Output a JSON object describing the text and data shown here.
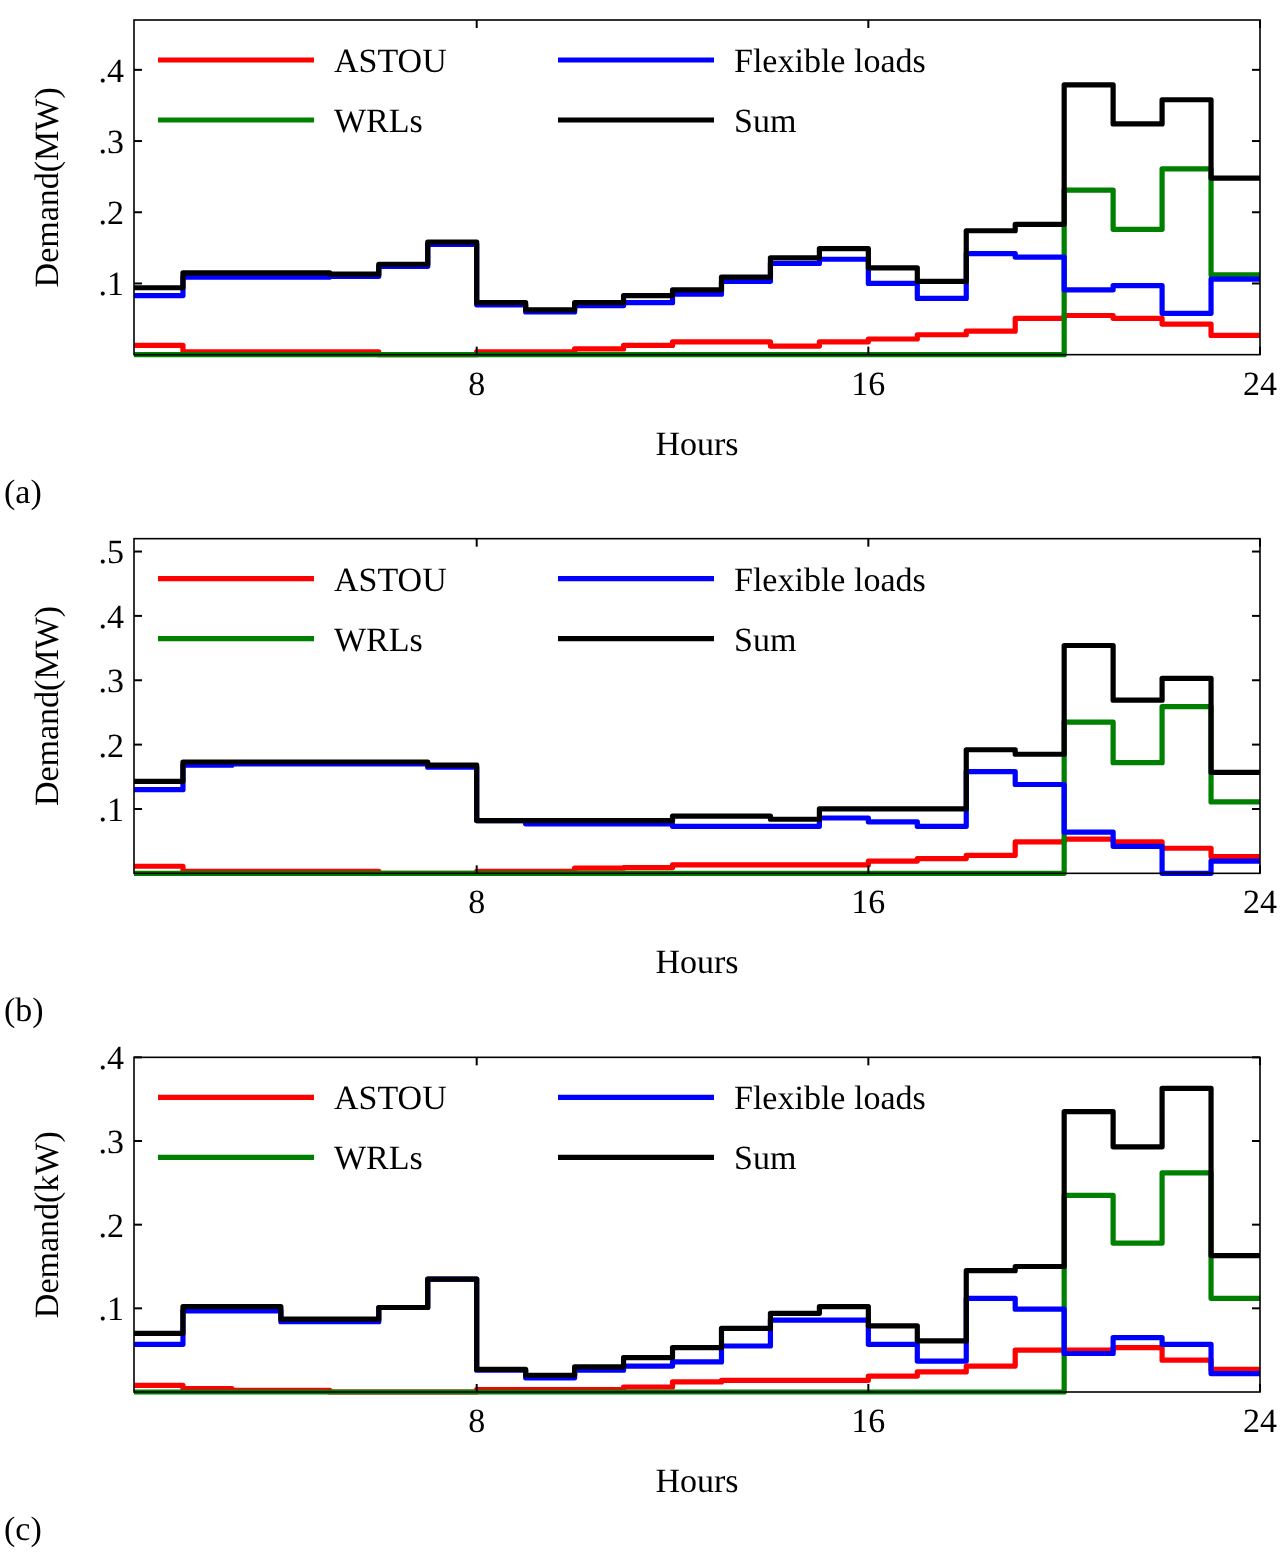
{
  "chart_data": [
    {
      "type": "step",
      "xlabel": "Hours",
      "ylabel": "Demand(MW)",
      "annotations": [
        "(a)"
      ],
      "x": [
        1,
        2,
        3,
        4,
        5,
        6,
        7,
        8,
        9,
        10,
        11,
        12,
        13,
        14,
        15,
        16,
        17,
        18,
        19,
        20,
        21,
        22,
        23,
        24
      ],
      "xlim": [
        1,
        24
      ],
      "xticks": [
        8,
        16,
        24
      ],
      "ylim": [
        0,
        0.47
      ],
      "yticks": [
        {
          "value": 0.1,
          "label": ".1"
        },
        {
          "value": 0.2,
          "label": ".2"
        },
        {
          "value": 0.3,
          "label": ".3"
        },
        {
          "value": 0.4,
          "label": ".4"
        }
      ],
      "legend": "top left",
      "series": [
        {
          "name": "ASTOU",
          "color": "#ff0000",
          "values": [
            0.013,
            0.004,
            0.004,
            0.004,
            0.004,
            0,
            0,
            0.004,
            0.004,
            0.008,
            0.013,
            0.018,
            0.018,
            0.012,
            0.018,
            0.022,
            0.028,
            0.033,
            0.051,
            0.055,
            0.051,
            0.043,
            0.027,
            0.027
          ]
        },
        {
          "name": "WRLs",
          "color": "#008000",
          "values": [
            0,
            0,
            0,
            0,
            0,
            0,
            0,
            0,
            0,
            0,
            0,
            0,
            0,
            0,
            0,
            0,
            0,
            0,
            0,
            0.231,
            0.176,
            0.261,
            0.112,
            0.112
          ]
        },
        {
          "name": "Flexible loads",
          "color": "#0000ff",
          "values": [
            0.083,
            0.109,
            0.109,
            0.109,
            0.11,
            0.124,
            0.155,
            0.07,
            0.06,
            0.069,
            0.073,
            0.085,
            0.103,
            0.128,
            0.134,
            0.1,
            0.079,
            0.142,
            0.137,
            0.091,
            0.097,
            0.058,
            0.106,
            0.106
          ]
        },
        {
          "name": "Sum",
          "color": "#000000",
          "values": [
            0.094,
            0.115,
            0.115,
            0.115,
            0.113,
            0.127,
            0.158,
            0.073,
            0.063,
            0.073,
            0.083,
            0.091,
            0.109,
            0.136,
            0.149,
            0.122,
            0.103,
            0.174,
            0.183,
            0.379,
            0.324,
            0.358,
            0.248,
            0.248
          ]
        }
      ]
    },
    {
      "type": "step",
      "xlabel": "Hours",
      "ylabel": "Demand(MW)",
      "annotations": [
        "(b)"
      ],
      "x": [
        1,
        2,
        3,
        4,
        5,
        6,
        7,
        8,
        9,
        10,
        11,
        12,
        13,
        14,
        15,
        16,
        17,
        18,
        19,
        20,
        21,
        22,
        23,
        24
      ],
      "xlim": [
        1,
        24
      ],
      "xticks": [
        8,
        16,
        24
      ],
      "ylim": [
        0,
        0.52
      ],
      "yticks": [
        {
          "value": 0.1,
          "label": ".1"
        },
        {
          "value": 0.2,
          "label": ".2"
        },
        {
          "value": 0.3,
          "label": ".3"
        },
        {
          "value": 0.4,
          "label": ".4"
        },
        {
          "value": 0.5,
          "label": ".5"
        }
      ],
      "legend": "top left",
      "series": [
        {
          "name": "ASTOU",
          "color": "#ff0000",
          "values": [
            0.011,
            0.003,
            0.003,
            0.003,
            0.003,
            0,
            0,
            0.003,
            0.003,
            0.008,
            0.009,
            0.013,
            0.013,
            0.013,
            0.013,
            0.019,
            0.023,
            0.028,
            0.049,
            0.053,
            0.049,
            0.039,
            0.026,
            0.026
          ]
        },
        {
          "name": "WRLs",
          "color": "#008000",
          "values": [
            0,
            0,
            0,
            0,
            0,
            0,
            0,
            0,
            0,
            0,
            0,
            0,
            0,
            0,
            0,
            0,
            0,
            0,
            0,
            0.235,
            0.172,
            0.259,
            0.111,
            0.111
          ]
        },
        {
          "name": "Flexible loads",
          "color": "#0000ff",
          "values": [
            0.13,
            0.168,
            0.17,
            0.17,
            0.17,
            0.17,
            0.165,
            0.082,
            0.077,
            0.077,
            0.077,
            0.073,
            0.073,
            0.073,
            0.086,
            0.08,
            0.073,
            0.158,
            0.138,
            0.064,
            0.042,
            0,
            0.019,
            0.019
          ]
        },
        {
          "name": "Sum",
          "color": "#000000",
          "values": [
            0.143,
            0.173,
            0.173,
            0.173,
            0.173,
            0.173,
            0.168,
            0.082,
            0.082,
            0.082,
            0.082,
            0.089,
            0.089,
            0.084,
            0.1,
            0.1,
            0.1,
            0.192,
            0.185,
            0.354,
            0.269,
            0.303,
            0.157,
            0.157
          ]
        }
      ]
    },
    {
      "type": "step",
      "xlabel": "Hours",
      "ylabel": "Demand(kW)",
      "annotations": [
        "(c)"
      ],
      "x": [
        1,
        2,
        3,
        4,
        5,
        6,
        7,
        8,
        9,
        10,
        11,
        12,
        13,
        14,
        15,
        16,
        17,
        18,
        19,
        20,
        21,
        22,
        23,
        24
      ],
      "xlim": [
        1,
        24
      ],
      "xticks": [
        8,
        16,
        24
      ],
      "ylim": [
        0,
        0.4
      ],
      "yticks": [
        {
          "value": 0.1,
          "label": ".1"
        },
        {
          "value": 0.2,
          "label": ".2"
        },
        {
          "value": 0.3,
          "label": ".3"
        },
        {
          "value": 0.4,
          "label": ".4"
        }
      ],
      "legend": "top left",
      "series": [
        {
          "name": "ASTOU",
          "color": "#ff0000",
          "values": [
            0.008,
            0.004,
            0.002,
            0.002,
            0,
            0,
            0,
            0.003,
            0.003,
            0.003,
            0.006,
            0.012,
            0.014,
            0.014,
            0.014,
            0.019,
            0.024,
            0.031,
            0.05,
            0.05,
            0.053,
            0.038,
            0.027,
            0.027
          ]
        },
        {
          "name": "WRLs",
          "color": "#008000",
          "values": [
            0,
            0,
            0,
            0,
            0,
            0,
            0,
            0,
            0,
            0,
            0,
            0,
            0,
            0,
            0,
            0,
            0,
            0,
            0,
            0.235,
            0.178,
            0.262,
            0.112,
            0.112
          ]
        },
        {
          "name": "Flexible loads",
          "color": "#0000ff",
          "values": [
            0.057,
            0.097,
            0.097,
            0.084,
            0.084,
            0.101,
            0.135,
            0.026,
            0.017,
            0.026,
            0.031,
            0.036,
            0.055,
            0.086,
            0.086,
            0.057,
            0.037,
            0.112,
            0.099,
            0.046,
            0.065,
            0.057,
            0.022,
            0.022
          ]
        },
        {
          "name": "Sum",
          "color": "#000000",
          "values": [
            0.07,
            0.102,
            0.102,
            0.087,
            0.087,
            0.101,
            0.135,
            0.027,
            0.02,
            0.03,
            0.041,
            0.053,
            0.076,
            0.094,
            0.102,
            0.079,
            0.061,
            0.145,
            0.15,
            0.335,
            0.293,
            0.363,
            0.163,
            0.163
          ]
        }
      ]
    }
  ]
}
